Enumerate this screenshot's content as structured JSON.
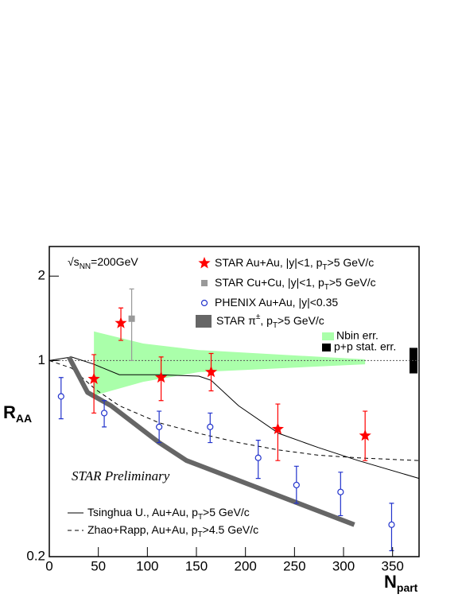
{
  "chart_data": {
    "type": "scatter",
    "energy_label": [
      "√s",
      "NN",
      "=200GeV"
    ],
    "annotation": "STAR Preliminary",
    "x_label": [
      "N",
      "part"
    ],
    "y_label": [
      "R",
      "AA"
    ],
    "xlim": [
      0,
      377
    ],
    "xticks": [
      0,
      50,
      100,
      150,
      200,
      250,
      300,
      350
    ],
    "ylim": [
      0.2,
      2.55
    ],
    "yticks": [
      0.2,
      1,
      2
    ],
    "log_y": true,
    "reference_line": 1,
    "series": [
      {
        "name": [
          "STAR Au+Au, |y|<1, p",
          "T",
          ">5 GeV/c"
        ],
        "type": "markers",
        "marker": "star",
        "color": "#ff0000",
        "x": [
          45.5,
          73,
          114,
          165,
          233,
          322
        ],
        "values": [
          0.86,
          1.36,
          0.87,
          0.91,
          0.57,
          0.54
        ],
        "err_low": [
          0.65,
          1.18,
          0.72,
          0.78,
          0.44,
          0.44
        ],
        "err_high": [
          1.05,
          1.54,
          1.03,
          1.06,
          0.7,
          0.66
        ]
      },
      {
        "name": [
          "STAR Cu+Cu, |y|<1, p",
          "T",
          ">5 GeV/c"
        ],
        "type": "markers",
        "marker": "square",
        "color": "#999999",
        "x": [
          84
        ],
        "values": [
          1.41
        ],
        "err_low": [
          1.0
        ],
        "err_high": [
          1.8
        ]
      },
      {
        "name": [
          "PHENIX Au+Au, |y|<0.35"
        ],
        "type": "markers",
        "marker": "circle",
        "color": "#2233cc",
        "x": [
          12,
          56,
          112,
          164,
          213,
          252,
          297,
          349
        ],
        "values": [
          0.745,
          0.65,
          0.58,
          0.58,
          0.45,
          0.36,
          0.34,
          0.26
        ],
        "err_low": [
          0.62,
          0.58,
          0.51,
          0.51,
          0.38,
          0.31,
          0.28,
          0.21
        ],
        "err_high": [
          0.87,
          0.72,
          0.66,
          0.65,
          0.52,
          0.42,
          0.4,
          0.31
        ]
      },
      {
        "name": [
          "STAR π",
          "±",
          ", p",
          "T",
          ">5 GeV/c"
        ],
        "type": "thick-line",
        "color": "#666666",
        "x": [
          20,
          39,
          63,
          112,
          140,
          311
        ],
        "values": [
          1.03,
          0.77,
          0.69,
          0.51,
          0.44,
          0.26
        ]
      },
      {
        "name": "Nbin err.",
        "type": "band",
        "color": "#aaffaa",
        "x": [
          45.5,
          95.8,
          152.6,
          322
        ],
        "upper": [
          1.27,
          1.15,
          1.09,
          1.01
        ],
        "lower": [
          0.75,
          0.84,
          0.91,
          0.97
        ]
      },
      {
        "name": "p+p stat. err.",
        "type": "box",
        "color": "#000000",
        "lower": 0.9,
        "upper": 1.11
      },
      {
        "name": [
          "Tsinghua U., Au+Au, p",
          "T",
          ">5 GeV/c"
        ],
        "type": "line",
        "dash": false,
        "color": "#000000",
        "x": [
          0,
          22.7,
          45.5,
          71.4,
          112,
          152.6,
          165,
          193,
          234,
          274,
          315,
          377
        ],
        "values": [
          1.0,
          1.03,
          0.97,
          0.89,
          0.89,
          0.88,
          0.85,
          0.69,
          0.55,
          0.49,
          0.44,
          0.38
        ]
      },
      {
        "name": [
          "Zhao+Rapp, Au+Au, p",
          "T",
          ">4.5 GeV/c"
        ],
        "type": "line",
        "dash": true,
        "color": "#000000",
        "x": [
          0,
          22.7,
          47,
          71.4,
          112,
          152.6,
          193,
          234,
          274,
          315,
          377
        ],
        "values": [
          1.0,
          0.94,
          0.79,
          0.69,
          0.6,
          0.55,
          0.51,
          0.48,
          0.46,
          0.45,
          0.44
        ]
      }
    ]
  }
}
